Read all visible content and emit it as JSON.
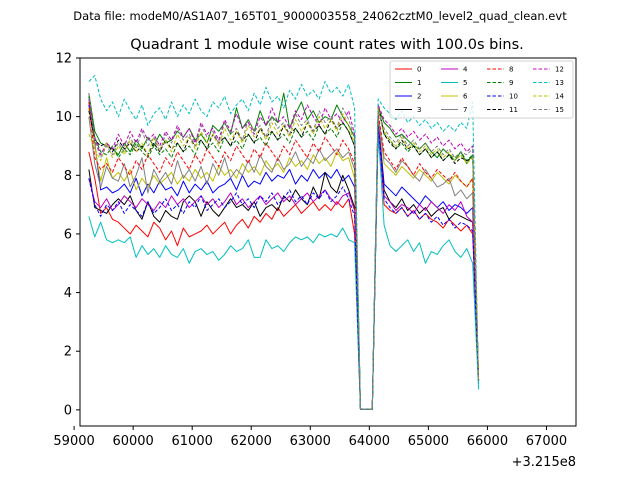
{
  "chart_data": {
    "type": "line",
    "suptitle": "Data file: modeM0/AS1A07_165T01_9000003558_24062cztM0_level2_quad_clean.evt",
    "title": "Quadrant 1 module wise count rates with 100.0s bins.",
    "xlabel": "",
    "ylabel": "",
    "x_offset_label": "+3.215e8",
    "xlim": [
      59100,
      67500
    ],
    "ylim": [
      -0.55,
      12.0
    ],
    "xticks": [
      59000,
      60000,
      61000,
      62000,
      63000,
      64000,
      65000,
      66000,
      67000
    ],
    "yticks": [
      0,
      2,
      4,
      6,
      8,
      10,
      12
    ],
    "x_start": 59250,
    "x_step": 100,
    "legend_position": "top-right",
    "series": [
      {
        "name": "0",
        "color": "#ff0000",
        "dash": "solid",
        "values": [
          8.8,
          7.9,
          6.7,
          6.9,
          6.5,
          6.4,
          6.2,
          6.0,
          6.3,
          6.1,
          5.9,
          6.4,
          6.2,
          5.8,
          6.1,
          5.6,
          6.2,
          5.9,
          6.0,
          6.1,
          6.3,
          6.0,
          6.2,
          6.4,
          6.0,
          6.3,
          6.5,
          6.2,
          6.6,
          6.4,
          6.7,
          6.5,
          6.9,
          6.6,
          6.8,
          7.0,
          6.7,
          6.9,
          7.1,
          6.8,
          7.0,
          6.8,
          7.1,
          6.9,
          7.2,
          6.0,
          0.02,
          0.02,
          0.02,
          9.9,
          7.0,
          6.8,
          6.7,
          6.9,
          6.6,
          6.8,
          6.5,
          6.7,
          6.5,
          6.4,
          6.2,
          6.5,
          6.3,
          6.1,
          6.3,
          6.0,
          1.0
        ]
      },
      {
        "name": "1",
        "color": "#008000",
        "dash": "solid",
        "values": [
          10.8,
          9.5,
          9.1,
          9.0,
          8.9,
          8.7,
          9.1,
          8.8,
          9.2,
          8.9,
          9.3,
          9.0,
          9.4,
          9.1,
          9.2,
          9.5,
          9.3,
          9.6,
          9.2,
          9.4,
          9.1,
          9.7,
          9.5,
          9.8,
          9.4,
          10.3,
          9.6,
          9.9,
          9.5,
          10.2,
          9.7,
          10.0,
          9.8,
          10.8,
          9.6,
          10.1,
          10.5,
          9.9,
          10.2,
          9.8,
          10.0,
          9.9,
          10.4,
          10.0,
          9.7,
          9.3,
          0.02,
          0.02,
          0.02,
          10.3,
          9.8,
          9.6,
          9.3,
          9.4,
          9.2,
          9.0,
          8.9,
          9.1,
          8.8,
          8.6,
          8.9,
          8.7,
          8.5,
          8.8,
          8.4,
          8.7,
          1.0
        ]
      },
      {
        "name": "2",
        "color": "#0000ff",
        "dash": "solid",
        "values": [
          10.4,
          9.1,
          7.5,
          7.6,
          7.4,
          7.5,
          7.7,
          7.4,
          7.9,
          7.3,
          7.7,
          7.4,
          7.8,
          7.5,
          7.6,
          7.3,
          7.8,
          7.4,
          7.7,
          7.5,
          7.8,
          7.4,
          7.6,
          7.7,
          7.9,
          7.5,
          8.0,
          7.6,
          7.8,
          7.7,
          8.1,
          7.8,
          8.0,
          7.9,
          8.2,
          7.7,
          8.0,
          7.8,
          8.2,
          7.9,
          8.1,
          7.9,
          8.2,
          7.8,
          8.0,
          7.6,
          0.02,
          0.02,
          0.02,
          9.9,
          7.7,
          7.5,
          7.3,
          7.6,
          7.4,
          7.2,
          7.0,
          7.3,
          7.1,
          6.9,
          7.1,
          6.8,
          7.0,
          6.9,
          6.7,
          6.9,
          1.0
        ]
      },
      {
        "name": "3",
        "color": "#000000",
        "dash": "solid",
        "values": [
          8.2,
          6.9,
          6.8,
          6.7,
          7.0,
          7.2,
          7.0,
          7.3,
          6.8,
          6.5,
          7.1,
          6.6,
          6.4,
          6.8,
          6.6,
          6.5,
          7.1,
          7.3,
          7.1,
          6.6,
          7.1,
          6.8,
          6.6,
          6.9,
          7.2,
          6.9,
          7.0,
          6.8,
          7.1,
          6.6,
          6.9,
          7.0,
          6.8,
          7.3,
          7.1,
          7.5,
          7.2,
          7.0,
          7.6,
          7.2,
          8.1,
          7.6,
          7.4,
          8.0,
          7.5,
          6.9,
          0.02,
          0.02,
          0.02,
          9.8,
          7.5,
          7.1,
          6.9,
          7.2,
          6.8,
          7.0,
          6.7,
          6.9,
          6.6,
          6.8,
          6.9,
          6.5,
          6.7,
          6.6,
          6.5,
          6.4,
          1.0
        ]
      },
      {
        "name": "4",
        "color": "#c000c0",
        "dash": "solid",
        "values": [
          7.9,
          7.1,
          6.9,
          7.2,
          6.8,
          7.0,
          7.3,
          7.1,
          6.9,
          7.2,
          7.0,
          6.8,
          7.1,
          6.9,
          7.3,
          7.0,
          7.2,
          6.9,
          7.1,
          7.3,
          7.0,
          7.2,
          6.9,
          7.1,
          7.4,
          7.0,
          7.2,
          6.9,
          7.1,
          7.3,
          7.0,
          7.2,
          7.4,
          7.1,
          7.3,
          7.0,
          7.2,
          7.4,
          7.1,
          7.3,
          7.5,
          7.2,
          7.0,
          7.3,
          7.4,
          6.8,
          0.02,
          0.02,
          0.02,
          9.8,
          7.3,
          7.1,
          6.8,
          7.0,
          6.9,
          6.7,
          7.0,
          6.8,
          7.1,
          6.9,
          6.7,
          7.0,
          6.8,
          7.1,
          6.6,
          6.4,
          1.0
        ]
      },
      {
        "name": "5",
        "color": "#00bfbf",
        "dash": "solid",
        "values": [
          6.6,
          5.9,
          6.4,
          5.8,
          5.7,
          5.8,
          5.7,
          5.9,
          5.2,
          5.6,
          5.3,
          5.5,
          5.2,
          5.6,
          5.3,
          5.2,
          5.5,
          5.0,
          5.4,
          5.5,
          5.3,
          5.4,
          5.1,
          5.3,
          5.6,
          5.4,
          5.5,
          5.8,
          5.2,
          5.2,
          5.8,
          5.5,
          5.6,
          5.4,
          5.7,
          5.9,
          5.8,
          5.9,
          5.7,
          6.0,
          5.9,
          6.0,
          5.9,
          6.2,
          5.8,
          5.7,
          0.02,
          0.02,
          0.02,
          9.5,
          6.3,
          5.6,
          5.4,
          5.6,
          5.8,
          5.4,
          5.7,
          5.0,
          5.4,
          5.3,
          5.6,
          5.8,
          5.4,
          5.2,
          5.5,
          5.0,
          0.7
        ]
      },
      {
        "name": "6",
        "color": "#bfbf00",
        "dash": "solid",
        "values": [
          10.3,
          9.0,
          7.8,
          8.6,
          7.9,
          8.1,
          7.8,
          8.2,
          7.5,
          7.9,
          7.6,
          8.0,
          7.7,
          7.9,
          8.1,
          7.7,
          8.0,
          7.8,
          8.2,
          7.9,
          8.1,
          7.8,
          8.3,
          8.0,
          8.2,
          7.9,
          8.4,
          8.1,
          8.3,
          8.0,
          8.5,
          8.2,
          8.4,
          8.1,
          8.6,
          8.3,
          8.5,
          8.2,
          8.7,
          8.4,
          8.6,
          8.3,
          8.8,
          8.5,
          8.6,
          7.9,
          0.02,
          0.02,
          0.02,
          10.0,
          8.4,
          8.2,
          8.0,
          8.3,
          8.1,
          7.9,
          8.2,
          8.0,
          7.8,
          8.1,
          7.9,
          7.7,
          8.0,
          7.8,
          7.6,
          7.9,
          1.0
        ]
      },
      {
        "name": "7",
        "color": "#808080",
        "dash": "solid",
        "values": [
          10.0,
          8.4,
          7.6,
          8.3,
          7.9,
          7.8,
          8.4,
          7.6,
          8.0,
          8.6,
          7.4,
          8.2,
          7.8,
          8.1,
          7.7,
          8.5,
          7.9,
          8.2,
          7.8,
          8.3,
          7.7,
          8.4,
          8.0,
          8.6,
          7.9,
          8.2,
          8.0,
          8.5,
          8.1,
          8.7,
          8.3,
          8.1,
          8.6,
          8.2,
          8.4,
          8.8,
          8.3,
          8.6,
          8.4,
          8.9,
          8.5,
          8.7,
          8.9,
          8.6,
          8.8,
          8.2,
          0.02,
          0.02,
          0.02,
          10.0,
          8.6,
          8.4,
          8.1,
          8.5,
          8.3,
          8.0,
          7.8,
          8.2,
          7.9,
          7.6,
          7.7,
          7.9,
          7.3,
          7.5,
          7.2,
          7.4,
          1.0
        ]
      },
      {
        "name": "8",
        "color": "#ff0000",
        "dash": "dashed",
        "values": [
          10.5,
          8.6,
          8.2,
          8.4,
          8.1,
          8.6,
          8.3,
          8.0,
          8.5,
          8.2,
          8.7,
          8.4,
          8.1,
          8.6,
          8.3,
          8.8,
          8.5,
          8.2,
          8.7,
          8.4,
          8.9,
          8.6,
          8.3,
          8.8,
          8.5,
          9.0,
          8.7,
          8.4,
          8.9,
          8.6,
          9.1,
          8.8,
          8.5,
          9.0,
          8.7,
          9.2,
          8.9,
          8.6,
          9.1,
          8.8,
          9.3,
          9.0,
          8.7,
          9.2,
          8.9,
          8.4,
          0.02,
          0.02,
          0.02,
          10.1,
          8.8,
          8.5,
          8.2,
          8.6,
          8.3,
          8.0,
          8.4,
          8.1,
          7.9,
          8.2,
          8.0,
          7.8,
          8.1,
          7.8,
          7.6,
          7.9,
          1.0
        ]
      },
      {
        "name": "9",
        "color": "#008000",
        "dash": "dashed",
        "values": [
          10.7,
          9.3,
          8.8,
          8.7,
          9.0,
          8.6,
          8.9,
          8.7,
          9.1,
          8.8,
          8.6,
          9.0,
          8.7,
          8.9,
          8.6,
          9.1,
          8.8,
          9.0,
          8.7,
          9.2,
          8.9,
          9.1,
          8.8,
          9.3,
          9.0,
          9.2,
          8.9,
          9.4,
          9.1,
          9.3,
          9.0,
          9.5,
          9.2,
          9.4,
          9.1,
          9.6,
          9.3,
          9.5,
          9.2,
          9.7,
          9.4,
          9.6,
          9.3,
          9.8,
          9.5,
          9.0,
          0.02,
          0.02,
          0.02,
          10.3,
          9.4,
          9.2,
          8.9,
          9.1,
          8.8,
          9.0,
          8.7,
          8.9,
          8.6,
          8.8,
          8.5,
          8.7,
          8.6,
          8.8,
          8.5,
          8.7,
          1.0
        ]
      },
      {
        "name": "10",
        "color": "#0000ff",
        "dash": "dashed",
        "values": [
          7.9,
          7.0,
          6.6,
          7.0,
          6.8,
          7.1,
          6.7,
          7.0,
          6.8,
          6.6,
          7.1,
          6.7,
          6.9,
          7.2,
          6.8,
          7.0,
          6.7,
          7.1,
          6.9,
          7.3,
          6.8,
          7.0,
          7.2,
          6.9,
          7.1,
          7.4,
          7.0,
          7.2,
          6.9,
          7.3,
          7.1,
          7.4,
          7.0,
          7.2,
          7.5,
          7.1,
          7.3,
          7.0,
          7.4,
          7.2,
          7.5,
          7.1,
          7.3,
          7.6,
          7.2,
          6.6,
          0.02,
          0.02,
          0.02,
          9.7,
          7.2,
          6.9,
          6.7,
          6.9,
          6.6,
          6.8,
          6.5,
          6.7,
          6.4,
          6.6,
          6.3,
          6.5,
          6.2,
          6.4,
          6.3,
          6.1,
          1.0
        ]
      },
      {
        "name": "11",
        "color": "#000000",
        "dash": "dashed",
        "values": [
          10.2,
          9.2,
          9.0,
          9.1,
          8.8,
          9.2,
          8.9,
          9.1,
          8.8,
          9.0,
          8.7,
          9.1,
          8.8,
          9.2,
          8.9,
          9.1,
          8.8,
          9.3,
          9.0,
          9.2,
          8.9,
          9.4,
          9.1,
          9.3,
          9.0,
          9.5,
          9.2,
          9.4,
          9.1,
          9.6,
          9.3,
          9.5,
          9.2,
          9.7,
          9.4,
          9.6,
          9.3,
          9.8,
          9.5,
          9.7,
          9.4,
          9.9,
          9.6,
          9.8,
          9.5,
          9.0,
          0.02,
          0.02,
          0.02,
          10.4,
          9.4,
          9.1,
          8.9,
          9.2,
          8.9,
          9.0,
          8.7,
          8.9,
          8.6,
          8.8,
          8.5,
          8.7,
          8.4,
          8.6,
          8.5,
          8.6,
          1.0
        ]
      },
      {
        "name": "12",
        "color": "#c000c0",
        "dash": "dashed",
        "values": [
          10.6,
          9.3,
          8.7,
          9.1,
          8.9,
          9.4,
          9.0,
          9.5,
          9.1,
          9.6,
          9.2,
          9.4,
          9.0,
          9.5,
          9.2,
          9.7,
          9.3,
          9.6,
          9.1,
          9.8,
          9.4,
          9.6,
          9.2,
          9.9,
          9.5,
          10.1,
          9.6,
          9.8,
          9.4,
          10.0,
          9.7,
          10.3,
          9.8,
          10.0,
          9.6,
          10.2,
          9.9,
          10.4,
          10.0,
          9.7,
          10.3,
          9.9,
          10.1,
          9.8,
          10.2,
          9.4,
          0.02,
          0.02,
          0.02,
          10.4,
          9.9,
          9.7,
          9.4,
          9.6,
          9.3,
          9.5,
          9.2,
          9.4,
          9.1,
          9.3,
          9.0,
          9.2,
          8.9,
          9.1,
          8.8,
          9.0,
          1.0
        ]
      },
      {
        "name": "13",
        "color": "#00bfbf",
        "dash": "dashed",
        "values": [
          11.2,
          11.4,
          10.6,
          10.2,
          10.5,
          10.0,
          10.6,
          10.2,
          9.9,
          10.4,
          9.7,
          10.1,
          10.3,
          9.9,
          10.5,
          10.0,
          10.4,
          10.1,
          10.6,
          10.2,
          10.0,
          10.5,
          10.3,
          10.7,
          10.1,
          10.4,
          10.6,
          10.2,
          10.8,
          10.4,
          11.0,
          10.5,
          10.7,
          10.3,
          10.9,
          10.6,
          11.1,
          10.7,
          10.9,
          10.6,
          11.2,
          10.8,
          11.0,
          10.7,
          11.1,
          10.3,
          0.02,
          0.02,
          0.02,
          10.6,
          10.3,
          10.1,
          9.9,
          10.2,
          9.8,
          10.0,
          9.7,
          9.9,
          9.6,
          9.8,
          9.5,
          9.7,
          9.5,
          9.8,
          9.6,
          10.5,
          0.8
        ]
      },
      {
        "name": "14",
        "color": "#bfbf00",
        "dash": "dashed",
        "values": [
          9.4,
          8.9,
          8.5,
          9.1,
          8.6,
          9.0,
          8.7,
          9.2,
          8.8,
          9.1,
          8.7,
          9.3,
          8.9,
          9.2,
          8.8,
          9.4,
          9.0,
          9.3,
          8.9,
          9.5,
          9.1,
          9.4,
          9.0,
          9.6,
          9.2,
          9.5,
          9.1,
          9.7,
          9.3,
          9.6,
          9.2,
          9.8,
          9.4,
          9.7,
          9.3,
          9.9,
          9.5,
          9.8,
          9.4,
          10.0,
          9.6,
          9.9,
          9.5,
          10.1,
          9.7,
          9.1,
          0.02,
          0.02,
          0.02,
          10.3,
          9.5,
          9.2,
          9.0,
          9.3,
          8.9,
          9.1,
          8.8,
          9.0,
          8.7,
          8.9,
          8.6,
          8.8,
          8.5,
          8.7,
          8.4,
          8.6,
          1.0
        ]
      },
      {
        "name": "15",
        "color": "#808080",
        "dash": "dashed",
        "values": [
          10.8,
          9.2,
          8.6,
          9.0,
          8.7,
          9.1,
          8.8,
          9.3,
          8.9,
          9.5,
          9.0,
          9.3,
          8.8,
          9.4,
          9.1,
          9.6,
          9.2,
          9.4,
          9.0,
          9.7,
          9.3,
          9.5,
          9.1,
          9.8,
          9.4,
          9.6,
          9.2,
          9.9,
          9.5,
          9.7,
          9.3,
          10.0,
          9.6,
          9.8,
          9.4,
          10.1,
          9.7,
          9.9,
          9.5,
          10.2,
          9.8,
          10.0,
          9.6,
          10.3,
          9.9,
          9.3,
          0.02,
          0.02,
          0.02,
          10.2,
          9.6,
          9.3,
          9.1,
          9.4,
          9.0,
          9.2,
          8.9,
          9.1,
          8.8,
          9.0,
          8.7,
          8.9,
          8.6,
          8.8,
          8.7,
          8.9,
          1.0
        ]
      }
    ]
  }
}
